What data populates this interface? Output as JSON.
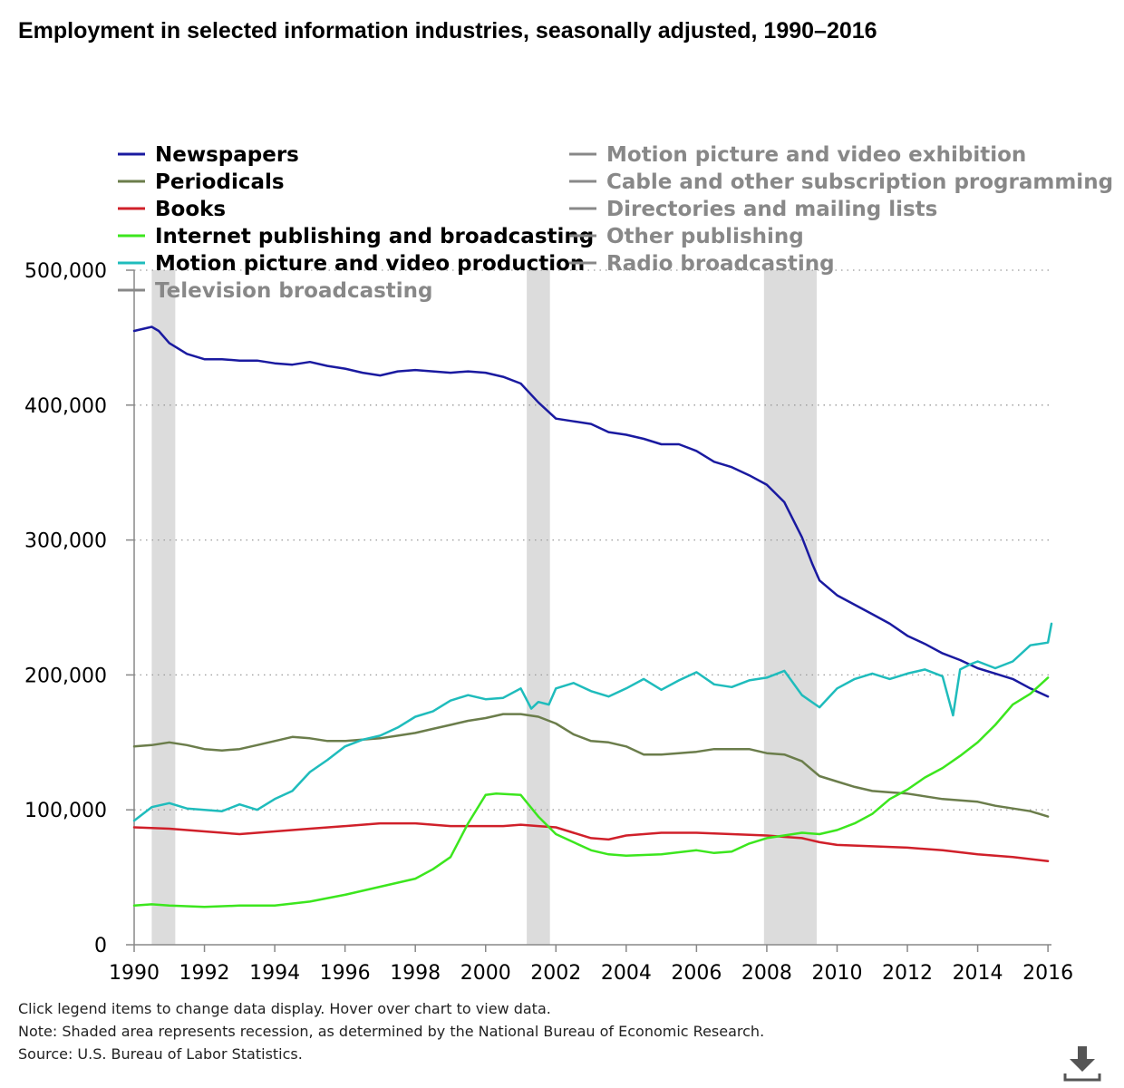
{
  "colors": {
    "newspapers": "#1a1aa0",
    "periodicals": "#6b7d4b",
    "books": "#d0202a",
    "internet": "#3ce61e",
    "motion_production": "#1fbcbc",
    "inactive": "#888888",
    "recession": "#dcdcdc"
  },
  "chart_data": {
    "type": "line",
    "title": "Employment in selected information industries, seasonally adjusted, 1990–2016",
    "xlabel": "",
    "ylabel": "",
    "xlim": [
      1990,
      2016.1
    ],
    "ylim": [
      0,
      500000
    ],
    "yticks": [
      {
        "value": 0,
        "label": "0"
      },
      {
        "value": 100000,
        "label": "100,000"
      },
      {
        "value": 200000,
        "label": "200,000"
      },
      {
        "value": 300000,
        "label": "300,000"
      },
      {
        "value": 400000,
        "label": "400,000"
      },
      {
        "value": 500000,
        "label": "500,000"
      }
    ],
    "xticks": [
      "1990",
      "1992",
      "1994",
      "1996",
      "1998",
      "2000",
      "2002",
      "2004",
      "2006",
      "2008",
      "2010",
      "2012",
      "2014",
      "2016"
    ],
    "grid": "horizontal dotted",
    "recessions": [
      {
        "start": 1990.5,
        "end": 1991.17
      },
      {
        "start": 2001.17,
        "end": 2001.83
      },
      {
        "start": 2007.92,
        "end": 2009.42
      }
    ],
    "legend": [
      {
        "name": "Newspapers",
        "active": true,
        "color_key": "newspapers",
        "column": 0
      },
      {
        "name": "Periodicals",
        "active": true,
        "color_key": "periodicals",
        "column": 0
      },
      {
        "name": "Books",
        "active": true,
        "color_key": "books",
        "column": 0
      },
      {
        "name": "Internet publishing and broadcasting",
        "active": true,
        "color_key": "internet",
        "column": 0
      },
      {
        "name": "Motion picture and video production",
        "active": true,
        "color_key": "motion_production",
        "column": 0
      },
      {
        "name": "Television broadcasting",
        "active": false,
        "color_key": "inactive",
        "column": 0
      },
      {
        "name": "Motion picture and video exhibition",
        "active": false,
        "color_key": "inactive",
        "column": 1
      },
      {
        "name": "Cable and other subscription programming",
        "active": false,
        "color_key": "inactive",
        "column": 1
      },
      {
        "name": "Directories and mailing lists",
        "active": false,
        "color_key": "inactive",
        "column": 1
      },
      {
        "name": "Other publishing",
        "active": false,
        "color_key": "inactive",
        "column": 1
      },
      {
        "name": "Radio broadcasting",
        "active": false,
        "color_key": "inactive",
        "column": 1
      }
    ],
    "series": [
      {
        "name": "Newspapers",
        "color_key": "newspapers",
        "x": [
          1990,
          1990.5,
          1990.7,
          1991,
          1991.5,
          1992,
          1992.5,
          1993,
          1993.5,
          1994,
          1994.5,
          1995,
          1995.5,
          1996,
          1996.5,
          1997,
          1997.5,
          1998,
          1998.5,
          1999,
          1999.5,
          2000,
          2000.5,
          2001,
          2001.5,
          2002,
          2002.5,
          2003,
          2003.5,
          2004,
          2004.5,
          2005,
          2005.5,
          2006,
          2006.5,
          2007,
          2007.5,
          2008,
          2008.5,
          2009,
          2009.3,
          2009.5,
          2010,
          2010.5,
          2011,
          2011.5,
          2012,
          2012.5,
          2013,
          2013.5,
          2014,
          2014.5,
          2015,
          2015.5,
          2016
        ],
        "y": [
          455000,
          458000,
          455000,
          446000,
          438000,
          434000,
          434000,
          433000,
          433000,
          431000,
          430000,
          432000,
          429000,
          427000,
          424000,
          422000,
          425000,
          426000,
          425000,
          424000,
          425000,
          424000,
          421000,
          416000,
          402000,
          390000,
          388000,
          386000,
          380000,
          378000,
          375000,
          371000,
          371000,
          366000,
          358000,
          354000,
          348000,
          341000,
          328000,
          302000,
          282000,
          270000,
          259000,
          252000,
          245000,
          238000,
          229000,
          223000,
          216000,
          211000,
          205000,
          201000,
          197000,
          190000,
          184000
        ]
      },
      {
        "name": "Periodicals",
        "color_key": "periodicals",
        "x": [
          1990,
          1990.5,
          1991,
          1991.5,
          1992,
          1992.5,
          1993,
          1993.5,
          1994,
          1994.5,
          1995,
          1995.5,
          1996,
          1996.5,
          1997,
          1997.5,
          1998,
          1998.5,
          1999,
          1999.5,
          2000,
          2000.5,
          2001,
          2001.5,
          2002,
          2002.5,
          2003,
          2003.5,
          2004,
          2004.5,
          2005,
          2005.5,
          2006,
          2006.5,
          2007,
          2007.5,
          2008,
          2008.5,
          2009,
          2009.5,
          2010,
          2010.5,
          2011,
          2011.5,
          2012,
          2012.5,
          2013,
          2013.5,
          2014,
          2014.5,
          2015,
          2015.5,
          2016
        ],
        "y": [
          147000,
          148000,
          150000,
          148000,
          145000,
          144000,
          145000,
          148000,
          151000,
          154000,
          153000,
          151000,
          151000,
          152000,
          153000,
          155000,
          157000,
          160000,
          163000,
          166000,
          168000,
          171000,
          171000,
          169000,
          164000,
          156000,
          151000,
          150000,
          147000,
          141000,
          141000,
          142000,
          143000,
          145000,
          145000,
          145000,
          142000,
          141000,
          136000,
          125000,
          121000,
          117000,
          114000,
          113000,
          112000,
          110000,
          108000,
          107000,
          106000,
          103000,
          101000,
          99000,
          95000
        ]
      },
      {
        "name": "Books",
        "color_key": "books",
        "x": [
          1990,
          1991,
          1992,
          1993,
          1994,
          1995,
          1996,
          1997,
          1998,
          1999,
          2000,
          2000.5,
          2001,
          2001.5,
          2002,
          2002.5,
          2003,
          2003.5,
          2004,
          2005,
          2006,
          2007,
          2008,
          2008.5,
          2009,
          2009.5,
          2010,
          2011,
          2012,
          2013,
          2014,
          2015,
          2016
        ],
        "y": [
          87000,
          86000,
          84000,
          82000,
          84000,
          86000,
          88000,
          90000,
          90000,
          88000,
          88000,
          88000,
          89000,
          88000,
          87000,
          83000,
          79000,
          78000,
          81000,
          83000,
          83000,
          82000,
          81000,
          80000,
          79000,
          76000,
          74000,
          73000,
          72000,
          70000,
          67000,
          65000,
          62000
        ]
      },
      {
        "name": "Internet publishing and broadcasting",
        "color_key": "internet",
        "x": [
          1990,
          1990.5,
          1991,
          1992,
          1993,
          1994,
          1995,
          1996,
          1997,
          1998,
          1998.5,
          1999,
          1999.5,
          2000,
          2000.3,
          2001,
          2001.5,
          2002,
          2002.5,
          2003,
          2003.5,
          2004,
          2005,
          2006,
          2006.5,
          2007,
          2007.5,
          2008,
          2009,
          2009.5,
          2010,
          2010.5,
          2011,
          2011.5,
          2012,
          2012.5,
          2013,
          2013.5,
          2014,
          2014.5,
          2015,
          2015.5,
          2016
        ],
        "y": [
          29000,
          30000,
          29000,
          28000,
          29000,
          29000,
          32000,
          37000,
          43000,
          49000,
          56000,
          65000,
          90000,
          111000,
          112000,
          111000,
          95000,
          82000,
          76000,
          70000,
          67000,
          66000,
          67000,
          70000,
          68000,
          69000,
          75000,
          79000,
          83000,
          82000,
          85000,
          90000,
          97000,
          108000,
          115000,
          124000,
          131000,
          140000,
          150000,
          163000,
          178000,
          186000,
          198000
        ]
      },
      {
        "name": "Motion picture and video production",
        "color_key": "motion_production",
        "x": [
          1990,
          1990.5,
          1991,
          1991.5,
          1992,
          1992.5,
          1993,
          1993.5,
          1994,
          1994.5,
          1995,
          1995.5,
          1996,
          1996.5,
          1997,
          1997.5,
          1998,
          1998.5,
          1999,
          1999.5,
          2000,
          2000.5,
          2001,
          2001.3,
          2001.5,
          2001.8,
          2002,
          2002.5,
          2003,
          2003.5,
          2004,
          2004.5,
          2005,
          2005.5,
          2006,
          2006.5,
          2007,
          2007.5,
          2008,
          2008.5,
          2009,
          2009.5,
          2010,
          2010.5,
          2011,
          2011.5,
          2012,
          2012.5,
          2013,
          2013.3,
          2013.5,
          2013.8,
          2014,
          2014.5,
          2015,
          2015.5,
          2016,
          2016.1
        ],
        "y": [
          92000,
          102000,
          105000,
          101000,
          100000,
          99000,
          104000,
          100000,
          108000,
          114000,
          128000,
          137000,
          147000,
          152000,
          155000,
          161000,
          169000,
          173000,
          181000,
          185000,
          182000,
          183000,
          190000,
          175000,
          180000,
          178000,
          190000,
          194000,
          188000,
          184000,
          190000,
          197000,
          189000,
          196000,
          202000,
          193000,
          191000,
          196000,
          198000,
          203000,
          185000,
          176000,
          190000,
          197000,
          201000,
          197000,
          201000,
          204000,
          199000,
          170000,
          204000,
          208000,
          210000,
          205000,
          210000,
          222000,
          224000,
          238000
        ]
      }
    ]
  },
  "footer": {
    "line1": "Click legend items to change data display. Hover over chart to view data.",
    "line2": "Note: Shaded area represents recession, as determined by the National Bureau of Economic Research.",
    "line3": "Source: U.S. Bureau of Labor Statistics."
  },
  "download": {
    "icon": "download-icon"
  }
}
